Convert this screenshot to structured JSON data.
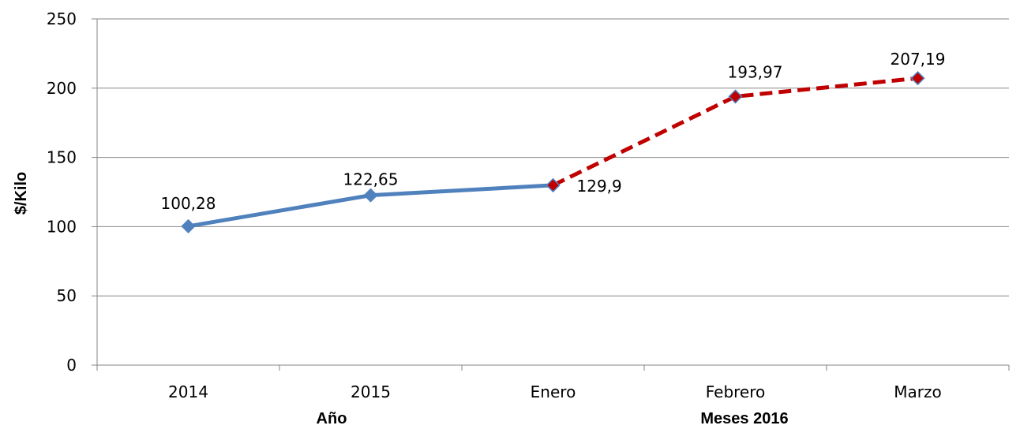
{
  "chart_data": {
    "type": "line",
    "categories": [
      "2014",
      "2015",
      "Enero",
      "Febrero",
      "Marzo"
    ],
    "series": [
      {
        "values": [
          100.28,
          122.65,
          129.9,
          null,
          null
        ],
        "color": "#4F81BD",
        "style": "solid",
        "marker": "diamond"
      },
      {
        "values": [
          null,
          null,
          129.9,
          193.97,
          207.19
        ],
        "color": "#C00000",
        "style": "dashed",
        "marker": "diamond"
      }
    ],
    "data_labels": [
      "100,28",
      "122,65",
      "129,9",
      "193,97",
      "207,19"
    ],
    "ylabel": "$/Kilo",
    "xlabel_groups": [
      "Año",
      "Meses 2016"
    ],
    "ylim": [
      0,
      250
    ],
    "yticks": [
      "0",
      "50",
      "100",
      "150",
      "200",
      "250"
    ],
    "grid": true,
    "legend": "none"
  }
}
